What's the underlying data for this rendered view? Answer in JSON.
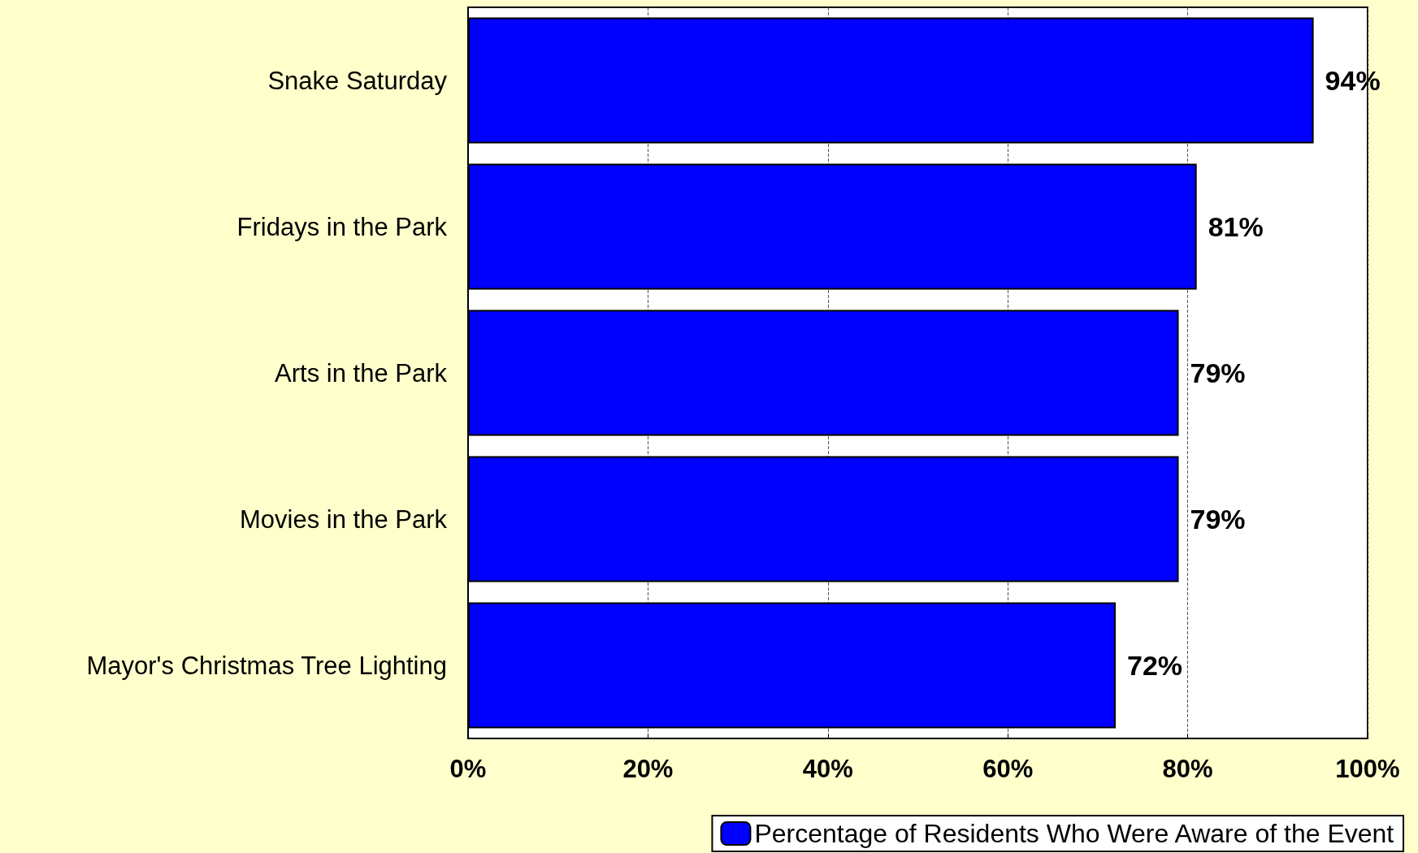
{
  "chart_data": {
    "type": "bar",
    "orientation": "horizontal",
    "categories": [
      "Snake Saturday",
      "Fridays in the Park",
      "Arts in the Park",
      "Movies in the Park",
      "Mayor's Christmas Tree Lighting"
    ],
    "series": [
      {
        "name": "Percentage of Residents Who Were Aware of the Event",
        "color": "#0000ff",
        "values": [
          94,
          81,
          79,
          79,
          72
        ]
      }
    ],
    "xlim": [
      0,
      100
    ],
    "xticks": [
      {
        "value": 0,
        "label": "0%"
      },
      {
        "value": 20,
        "label": "20%"
      },
      {
        "value": 40,
        "label": "40%"
      },
      {
        "value": 60,
        "label": "60%"
      },
      {
        "value": 80,
        "label": "80%"
      },
      {
        "value": 100,
        "label": "100%"
      }
    ],
    "value_labels": [
      [
        "94%",
        "81%",
        "79%",
        "79%",
        "72%"
      ]
    ],
    "grid": "x",
    "legend": "bottom right"
  }
}
